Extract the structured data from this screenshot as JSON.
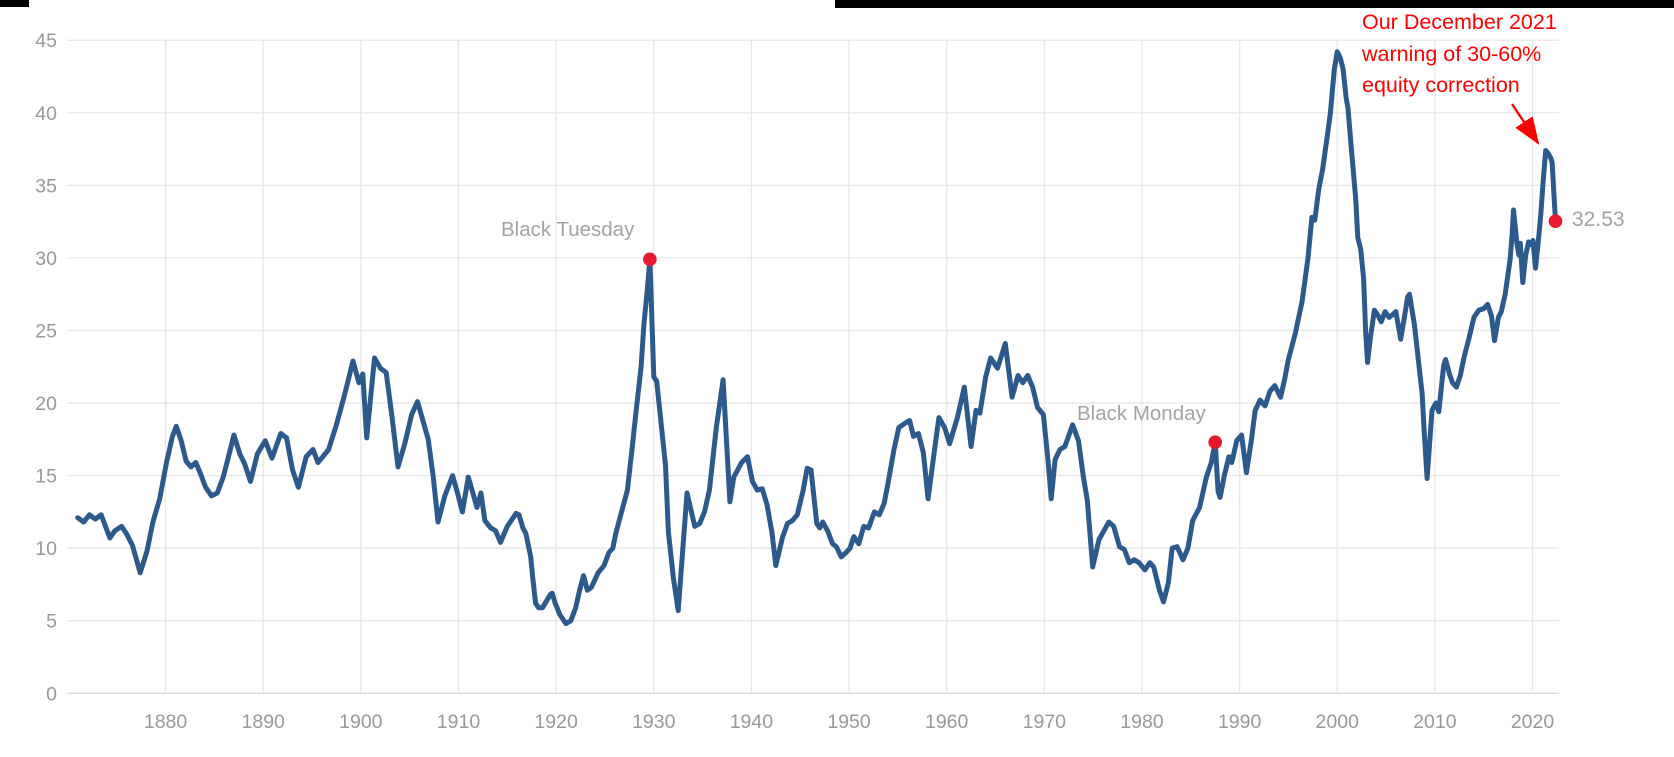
{
  "chart_data": {
    "type": "line",
    "title": "",
    "xlabel": "",
    "ylabel": "",
    "grid": true,
    "legend": "none",
    "xlim": [
      1871,
      2023.5
    ],
    "ylim": [
      0,
      45
    ],
    "x_ticks": [
      1880,
      1890,
      1900,
      1910,
      1920,
      1930,
      1940,
      1950,
      1960,
      1970,
      1980,
      1990,
      2000,
      2010,
      2020
    ],
    "y_ticks": [
      0,
      5,
      10,
      15,
      20,
      25,
      30,
      35,
      40,
      45
    ],
    "line_color": "#2d5a8d",
    "marker_color": "#e8192d",
    "gridline_color": "#e7e7e7",
    "baseline_color": "#d9d9d9",
    "tick_label_color": "#999999",
    "points": [
      [
        1871.0,
        12.1
      ],
      [
        1871.6,
        11.8
      ],
      [
        1872.2,
        12.3
      ],
      [
        1872.8,
        12.0
      ],
      [
        1873.4,
        12.3
      ],
      [
        1874.3,
        10.7
      ],
      [
        1874.8,
        11.2
      ],
      [
        1875.5,
        11.5
      ],
      [
        1876.0,
        11.0
      ],
      [
        1876.6,
        10.2
      ],
      [
        1877.4,
        8.3
      ],
      [
        1878.1,
        9.8
      ],
      [
        1878.7,
        11.8
      ],
      [
        1879.4,
        13.4
      ],
      [
        1880.1,
        15.9
      ],
      [
        1880.7,
        17.7
      ],
      [
        1881.1,
        18.4
      ],
      [
        1881.6,
        17.4
      ],
      [
        1882.1,
        16.0
      ],
      [
        1882.6,
        15.6
      ],
      [
        1883.1,
        15.9
      ],
      [
        1883.6,
        15.1
      ],
      [
        1884.1,
        14.2
      ],
      [
        1884.7,
        13.6
      ],
      [
        1885.3,
        13.8
      ],
      [
        1885.9,
        14.9
      ],
      [
        1886.4,
        16.2
      ],
      [
        1887.0,
        17.8
      ],
      [
        1887.6,
        16.5
      ],
      [
        1888.1,
        15.8
      ],
      [
        1888.7,
        14.6
      ],
      [
        1889.4,
        16.5
      ],
      [
        1890.2,
        17.4
      ],
      [
        1890.9,
        16.2
      ],
      [
        1891.8,
        17.9
      ],
      [
        1892.4,
        17.6
      ],
      [
        1893.0,
        15.4
      ],
      [
        1893.6,
        14.2
      ],
      [
        1894.4,
        16.3
      ],
      [
        1895.1,
        16.8
      ],
      [
        1895.6,
        15.9
      ],
      [
        1896.1,
        16.3
      ],
      [
        1896.7,
        16.8
      ],
      [
        1897.5,
        18.5
      ],
      [
        1898.3,
        20.5
      ],
      [
        1899.2,
        22.9
      ],
      [
        1899.8,
        21.4
      ],
      [
        1900.2,
        22.0
      ],
      [
        1900.6,
        17.6
      ],
      [
        1901.4,
        23.1
      ],
      [
        1902.0,
        22.4
      ],
      [
        1902.6,
        22.1
      ],
      [
        1903.2,
        19.0
      ],
      [
        1903.8,
        15.6
      ],
      [
        1904.5,
        17.2
      ],
      [
        1905.2,
        19.2
      ],
      [
        1905.8,
        20.1
      ],
      [
        1906.4,
        18.7
      ],
      [
        1906.9,
        17.5
      ],
      [
        1907.4,
        15.0
      ],
      [
        1907.9,
        11.8
      ],
      [
        1908.6,
        13.6
      ],
      [
        1909.4,
        15.0
      ],
      [
        1909.9,
        13.8
      ],
      [
        1910.4,
        12.5
      ],
      [
        1911.0,
        14.9
      ],
      [
        1911.9,
        12.8
      ],
      [
        1912.3,
        13.8
      ],
      [
        1912.7,
        11.9
      ],
      [
        1913.3,
        11.4
      ],
      [
        1913.8,
        11.2
      ],
      [
        1914.3,
        10.4
      ],
      [
        1915.0,
        11.5
      ],
      [
        1915.9,
        12.4
      ],
      [
        1916.2,
        12.3
      ],
      [
        1916.6,
        11.4
      ],
      [
        1916.9,
        11.0
      ],
      [
        1917.4,
        9.4
      ],
      [
        1917.6,
        8.0
      ],
      [
        1917.9,
        6.2
      ],
      [
        1918.2,
        5.9
      ],
      [
        1918.6,
        5.9
      ],
      [
        1919.4,
        6.8
      ],
      [
        1919.6,
        6.9
      ],
      [
        1919.9,
        6.2
      ],
      [
        1920.4,
        5.4
      ],
      [
        1921.0,
        4.8
      ],
      [
        1921.5,
        5.0
      ],
      [
        1922.0,
        5.9
      ],
      [
        1922.4,
        7.1
      ],
      [
        1922.8,
        8.1
      ],
      [
        1923.2,
        7.1
      ],
      [
        1923.6,
        7.3
      ],
      [
        1924.3,
        8.3
      ],
      [
        1924.9,
        8.8
      ],
      [
        1925.4,
        9.7
      ],
      [
        1925.8,
        10.0
      ],
      [
        1926.1,
        11.0
      ],
      [
        1926.9,
        13.0
      ],
      [
        1927.3,
        14.0
      ],
      [
        1927.8,
        17.0
      ],
      [
        1928.2,
        19.5
      ],
      [
        1928.7,
        22.5
      ],
      [
        1929.0,
        25.5
      ],
      [
        1929.3,
        27.5
      ],
      [
        1929.6,
        29.9
      ],
      [
        1930.0,
        21.8
      ],
      [
        1930.3,
        21.5
      ],
      [
        1931.2,
        15.7
      ],
      [
        1931.5,
        11.1
      ],
      [
        1932.0,
        8.0
      ],
      [
        1932.5,
        5.7
      ],
      [
        1933.4,
        13.8
      ],
      [
        1934.2,
        11.5
      ],
      [
        1934.7,
        11.7
      ],
      [
        1935.2,
        12.5
      ],
      [
        1935.7,
        14.0
      ],
      [
        1936.4,
        18.3
      ],
      [
        1937.1,
        21.6
      ],
      [
        1937.8,
        13.2
      ],
      [
        1938.2,
        14.9
      ],
      [
        1938.6,
        15.4
      ],
      [
        1939.0,
        15.9
      ],
      [
        1939.6,
        16.3
      ],
      [
        1940.1,
        14.6
      ],
      [
        1940.6,
        14.0
      ],
      [
        1941.1,
        14.1
      ],
      [
        1941.6,
        13.0
      ],
      [
        1942.1,
        11.1
      ],
      [
        1942.5,
        8.8
      ],
      [
        1943.2,
        10.8
      ],
      [
        1943.7,
        11.7
      ],
      [
        1944.2,
        11.9
      ],
      [
        1944.7,
        12.3
      ],
      [
        1945.3,
        14.0
      ],
      [
        1945.7,
        15.5
      ],
      [
        1946.1,
        15.4
      ],
      [
        1946.7,
        11.7
      ],
      [
        1947.0,
        11.4
      ],
      [
        1947.3,
        11.8
      ],
      [
        1947.8,
        11.2
      ],
      [
        1948.3,
        10.3
      ],
      [
        1948.7,
        10.1
      ],
      [
        1949.2,
        9.4
      ],
      [
        1949.7,
        9.7
      ],
      [
        1950.1,
        10.0
      ],
      [
        1950.5,
        10.8
      ],
      [
        1951.0,
        10.3
      ],
      [
        1951.5,
        11.5
      ],
      [
        1952.0,
        11.4
      ],
      [
        1952.6,
        12.5
      ],
      [
        1953.1,
        12.3
      ],
      [
        1953.6,
        13.1
      ],
      [
        1954.0,
        14.5
      ],
      [
        1954.6,
        16.8
      ],
      [
        1955.1,
        18.3
      ],
      [
        1955.7,
        18.6
      ],
      [
        1956.2,
        18.8
      ],
      [
        1956.6,
        17.7
      ],
      [
        1957.1,
        17.9
      ],
      [
        1957.6,
        16.6
      ],
      [
        1958.1,
        13.4
      ],
      [
        1958.7,
        16.5
      ],
      [
        1959.2,
        19.0
      ],
      [
        1959.8,
        18.3
      ],
      [
        1960.3,
        17.2
      ],
      [
        1961.1,
        19.0
      ],
      [
        1961.8,
        21.1
      ],
      [
        1962.5,
        17.0
      ],
      [
        1963.0,
        19.5
      ],
      [
        1963.4,
        19.3
      ],
      [
        1964.0,
        21.8
      ],
      [
        1964.5,
        23.1
      ],
      [
        1965.2,
        22.4
      ],
      [
        1966.0,
        24.1
      ],
      [
        1966.7,
        20.4
      ],
      [
        1967.3,
        21.9
      ],
      [
        1967.8,
        21.4
      ],
      [
        1968.3,
        21.9
      ],
      [
        1968.8,
        21.1
      ],
      [
        1969.3,
        19.7
      ],
      [
        1969.9,
        19.2
      ],
      [
        1970.4,
        15.9
      ],
      [
        1970.7,
        13.4
      ],
      [
        1971.1,
        16.1
      ],
      [
        1971.6,
        16.8
      ],
      [
        1972.1,
        17.0
      ],
      [
        1972.9,
        18.5
      ],
      [
        1973.5,
        17.4
      ],
      [
        1974.0,
        14.9
      ],
      [
        1974.4,
        13.3
      ],
      [
        1974.95,
        8.7
      ],
      [
        1975.6,
        10.6
      ],
      [
        1976.1,
        11.2
      ],
      [
        1976.6,
        11.8
      ],
      [
        1977.1,
        11.5
      ],
      [
        1977.7,
        10.1
      ],
      [
        1978.2,
        9.9
      ],
      [
        1978.7,
        9.0
      ],
      [
        1979.2,
        9.2
      ],
      [
        1979.7,
        9.0
      ],
      [
        1980.3,
        8.5
      ],
      [
        1980.8,
        9.0
      ],
      [
        1981.2,
        8.7
      ],
      [
        1981.8,
        7.1
      ],
      [
        1982.2,
        6.3
      ],
      [
        1982.7,
        7.6
      ],
      [
        1983.1,
        10.0
      ],
      [
        1983.6,
        10.1
      ],
      [
        1984.2,
        9.2
      ],
      [
        1984.7,
        10.0
      ],
      [
        1985.2,
        11.9
      ],
      [
        1985.9,
        12.8
      ],
      [
        1986.6,
        14.9
      ],
      [
        1987.1,
        15.9
      ],
      [
        1987.5,
        17.3
      ],
      [
        1987.8,
        13.9
      ],
      [
        1988.0,
        13.5
      ],
      [
        1988.4,
        14.9
      ],
      [
        1988.9,
        16.3
      ],
      [
        1989.2,
        15.9
      ],
      [
        1989.7,
        17.4
      ],
      [
        1990.2,
        17.8
      ],
      [
        1990.7,
        15.2
      ],
      [
        1991.2,
        17.4
      ],
      [
        1991.6,
        19.5
      ],
      [
        1992.1,
        20.2
      ],
      [
        1992.6,
        19.8
      ],
      [
        1993.1,
        20.8
      ],
      [
        1993.6,
        21.2
      ],
      [
        1994.2,
        20.4
      ],
      [
        1994.6,
        21.6
      ],
      [
        1995.0,
        23.0
      ],
      [
        1995.7,
        24.8
      ],
      [
        1996.4,
        27.0
      ],
      [
        1997.0,
        30.0
      ],
      [
        1997.4,
        32.8
      ],
      [
        1997.7,
        32.6
      ],
      [
        1998.1,
        34.7
      ],
      [
        1998.5,
        36.1
      ],
      [
        1999.0,
        38.5
      ],
      [
        1999.3,
        40.0
      ],
      [
        1999.7,
        43.0
      ],
      [
        2000.0,
        44.2
      ],
      [
        2000.3,
        43.8
      ],
      [
        2000.6,
        43.0
      ],
      [
        2000.9,
        41.1
      ],
      [
        2001.1,
        40.3
      ],
      [
        2001.4,
        37.9
      ],
      [
        2001.7,
        35.6
      ],
      [
        2001.9,
        34.0
      ],
      [
        2002.1,
        31.4
      ],
      [
        2002.4,
        30.6
      ],
      [
        2002.7,
        28.6
      ],
      [
        2002.9,
        25.0
      ],
      [
        2003.1,
        22.8
      ],
      [
        2003.4,
        24.5
      ],
      [
        2003.8,
        26.4
      ],
      [
        2004.2,
        26.0
      ],
      [
        2004.5,
        25.6
      ],
      [
        2004.9,
        26.3
      ],
      [
        2005.3,
        25.9
      ],
      [
        2005.7,
        26.1
      ],
      [
        2006.0,
        26.3
      ],
      [
        2006.5,
        24.4
      ],
      [
        2006.9,
        26.0
      ],
      [
        2007.2,
        27.3
      ],
      [
        2007.4,
        27.5
      ],
      [
        2007.9,
        25.4
      ],
      [
        2008.3,
        23.0
      ],
      [
        2008.7,
        20.6
      ],
      [
        2008.85,
        18.6
      ],
      [
        2009.2,
        14.8
      ],
      [
        2009.7,
        19.5
      ],
      [
        2010.1,
        20.0
      ],
      [
        2010.4,
        19.4
      ],
      [
        2010.9,
        22.6
      ],
      [
        2011.1,
        23.0
      ],
      [
        2011.5,
        22.0
      ],
      [
        2011.8,
        21.4
      ],
      [
        2012.2,
        21.1
      ],
      [
        2012.6,
        21.9
      ],
      [
        2013.0,
        23.2
      ],
      [
        2013.5,
        24.5
      ],
      [
        2014.0,
        25.9
      ],
      [
        2014.5,
        26.4
      ],
      [
        2015.0,
        26.5
      ],
      [
        2015.4,
        26.8
      ],
      [
        2015.8,
        26.0
      ],
      [
        2016.1,
        24.3
      ],
      [
        2016.5,
        25.9
      ],
      [
        2016.8,
        26.3
      ],
      [
        2017.2,
        27.5
      ],
      [
        2017.7,
        29.9
      ],
      [
        2017.9,
        31.5
      ],
      [
        2018.05,
        33.3
      ],
      [
        2018.4,
        31.0
      ],
      [
        2018.6,
        30.2
      ],
      [
        2018.75,
        31.0
      ],
      [
        2019.0,
        28.3
      ],
      [
        2019.3,
        30.2
      ],
      [
        2019.6,
        31.1
      ],
      [
        2019.9,
        30.9
      ],
      [
        2020.05,
        31.2
      ],
      [
        2020.3,
        29.3
      ],
      [
        2020.6,
        31.2
      ],
      [
        2020.85,
        33.0
      ],
      [
        2021.1,
        35.4
      ],
      [
        2021.35,
        37.4
      ],
      [
        2021.6,
        37.2
      ],
      [
        2021.85,
        36.9
      ],
      [
        2022.0,
        36.6
      ],
      [
        2022.35,
        32.53
      ]
    ],
    "markers": [
      {
        "x": 1929.6,
        "y": 29.9,
        "label": "Black Tuesday"
      },
      {
        "x": 1987.5,
        "y": 17.3,
        "label": "Black Monday"
      },
      {
        "x": 2022.35,
        "y": 32.53,
        "label": "32.53"
      }
    ],
    "annotation": {
      "lines": [
        "Our December 2021",
        "warning of 30-60%",
        "equity correction"
      ],
      "color": "#FF0000"
    }
  }
}
